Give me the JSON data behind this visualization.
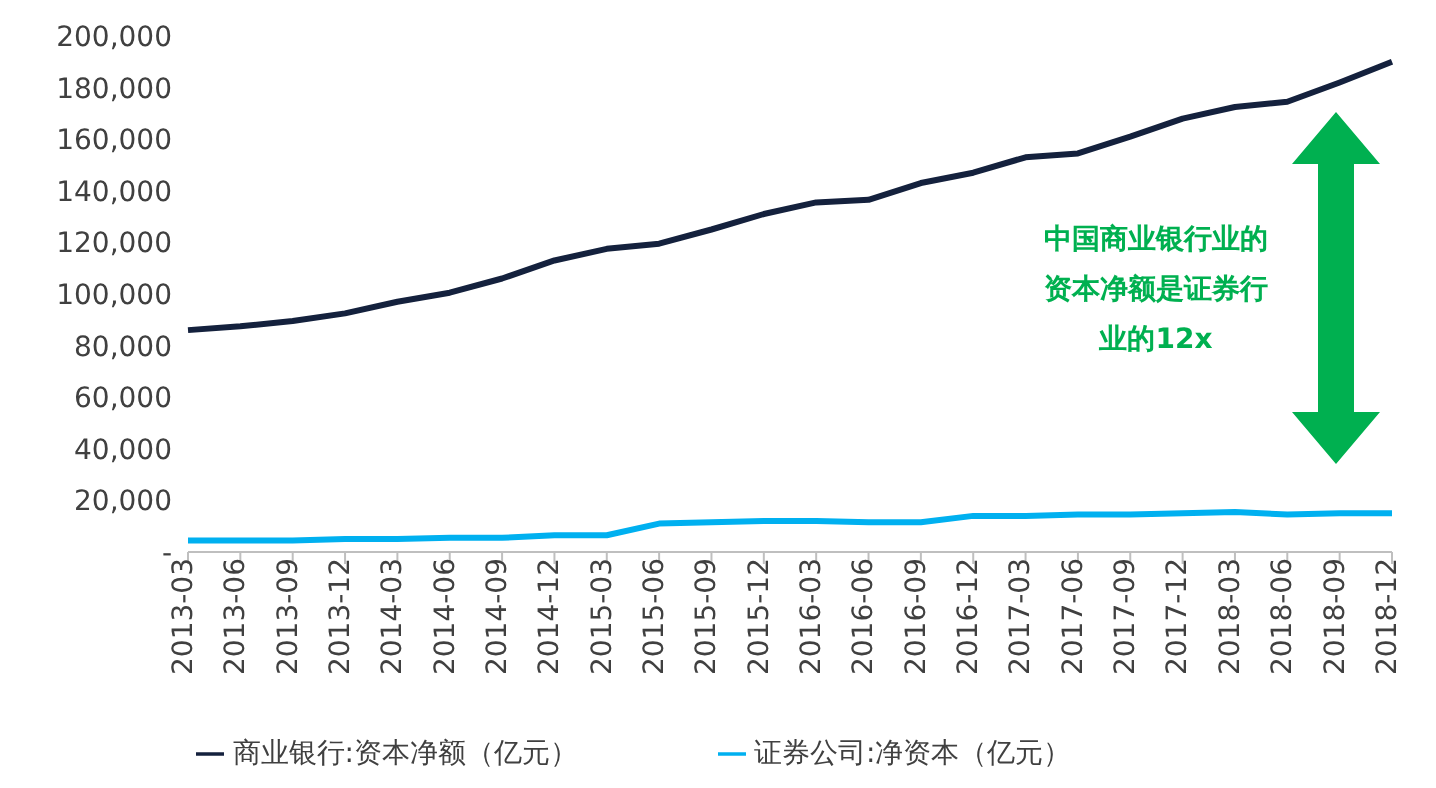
{
  "chart_data": {
    "type": "line",
    "categories": [
      "2013-03",
      "2013-06",
      "2013-09",
      "2013-12",
      "2014-03",
      "2014-06",
      "2014-09",
      "2014-12",
      "2015-03",
      "2015-06",
      "2015-09",
      "2015-12",
      "2016-03",
      "2016-06",
      "2016-09",
      "2016-12",
      "2017-03",
      "2017-06",
      "2017-09",
      "2017-12",
      "2018-03",
      "2018-06",
      "2018-09",
      "2018-12"
    ],
    "series": [
      {
        "name": "证券公司:净资本（亿元）",
        "color": "#00b0f0",
        "values": [
          4500,
          4500,
          4500,
          5000,
          5000,
          5500,
          5500,
          6500,
          6500,
          11000,
          11500,
          12000,
          12000,
          11500,
          11500,
          14000,
          14000,
          14500,
          14500,
          15000,
          15500,
          14500,
          15000,
          15000
        ]
      },
      {
        "name": "商业银行:资本净额（亿元）",
        "color": "#14213d",
        "values": [
          86000,
          87500,
          89500,
          92500,
          97000,
          100500,
          106000,
          113000,
          117500,
          119500,
          125000,
          131000,
          135500,
          136500,
          143000,
          147000,
          153000,
          154500,
          161000,
          168000,
          172500,
          174500,
          182000,
          190000
        ]
      }
    ],
    "ylim": [
      0,
      200000
    ],
    "yticks": [
      {
        "value": 0,
        "label": "-"
      },
      {
        "value": 20000,
        "label": "20,000"
      },
      {
        "value": 40000,
        "label": "40,000"
      },
      {
        "value": 60000,
        "label": "60,000"
      },
      {
        "value": 80000,
        "label": "80,000"
      },
      {
        "value": 100000,
        "label": "100,000"
      },
      {
        "value": 120000,
        "label": "120,000"
      },
      {
        "value": 140000,
        "label": "140,000"
      },
      {
        "value": 160000,
        "label": "160,000"
      },
      {
        "value": 180000,
        "label": "180,000"
      },
      {
        "value": 200000,
        "label": "200,000"
      }
    ],
    "annotations": [
      "中国商业银行业的资本净额是证券行业的12x"
    ],
    "legend": "bottom",
    "grid": false,
    "marker": "none",
    "line_style": "solid"
  }
}
